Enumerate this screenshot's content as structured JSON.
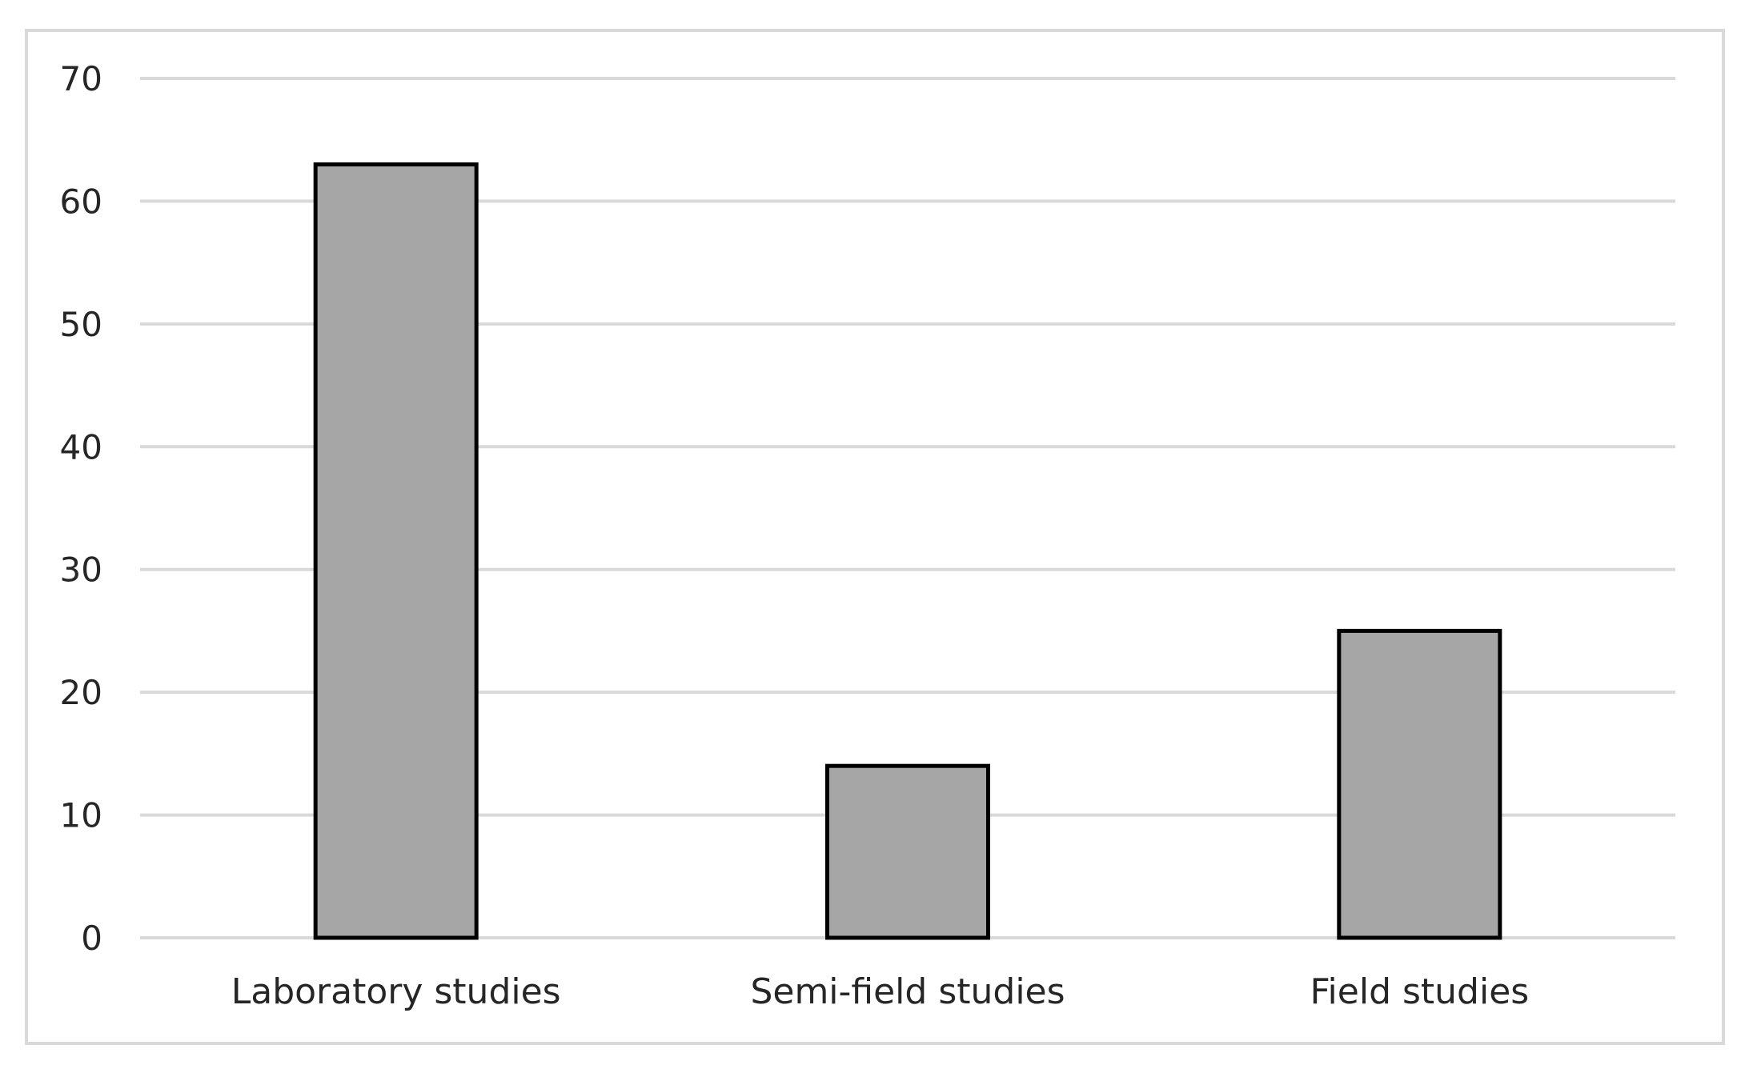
{
  "chart_data": {
    "type": "bar",
    "categories": [
      "Laboratory studies",
      "Semi-field studies",
      "Field studies"
    ],
    "values": [
      63,
      14,
      25
    ],
    "ylim": [
      0,
      70
    ],
    "yticks": [
      "0",
      "10",
      "20",
      "30",
      "40",
      "50",
      "60",
      "70"
    ],
    "grid": true,
    "legend": "none"
  },
  "colors": {
    "bar_fill": "#a6a6a6",
    "bar_outline": "#000000",
    "grid": "#d9d9d9",
    "frame": "#d9d9d9",
    "text": "#262626"
  }
}
